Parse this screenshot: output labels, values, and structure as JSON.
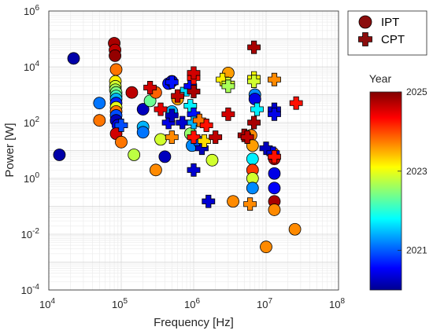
{
  "chart_data": {
    "type": "scatter",
    "xlabel": "Frequency [Hz]",
    "ylabel": "Power [W]",
    "xscale": "log",
    "yscale": "log",
    "xlim": [
      10000,
      100000000
    ],
    "ylim": [
      0.0001,
      1000000
    ],
    "grid": true,
    "x_ticks": [
      {
        "base": "10",
        "exp": "4"
      },
      {
        "base": "10",
        "exp": "5"
      },
      {
        "base": "10",
        "exp": "6"
      },
      {
        "base": "10",
        "exp": "7"
      },
      {
        "base": "10",
        "exp": "8"
      }
    ],
    "y_ticks": [
      {
        "base": "10",
        "exp": "-4"
      },
      {
        "base": "10",
        "exp": "-2"
      },
      {
        "base": "10",
        "exp": "0"
      },
      {
        "base": "10",
        "exp": "2"
      },
      {
        "base": "10",
        "exp": "4"
      },
      {
        "base": "10",
        "exp": "6"
      }
    ],
    "legend": {
      "placement": "outside-top-right",
      "entries": [
        {
          "label": "IPT",
          "marker": "circle",
          "color": "#8b0d0d"
        },
        {
          "label": "CPT",
          "marker": "plus",
          "color": "#8b0d0d"
        }
      ]
    },
    "colorbar": {
      "title": "Year",
      "min": 2020,
      "max": 2025,
      "ticks": [
        "2021",
        "2023",
        "2025"
      ],
      "colormap": "jet"
    },
    "series": [
      {
        "name": "IPT",
        "marker": "circle",
        "points": [
          [
            14000,
            7,
            2020.2
          ],
          [
            22000,
            20000,
            2020.2
          ],
          [
            50000,
            500,
            2021.2
          ],
          [
            50000,
            120,
            2023.8
          ],
          [
            80000,
            70000,
            2024.8
          ],
          [
            82000,
            40000,
            2024.7
          ],
          [
            82000,
            25000,
            2024.9
          ],
          [
            85000,
            8000,
            2023.8
          ],
          [
            83000,
            3000,
            2023.2
          ],
          [
            83000,
            2000,
            2022.9
          ],
          [
            83000,
            1500,
            2022.7
          ],
          [
            85000,
            1200,
            2022.5
          ],
          [
            85000,
            900,
            2022.2
          ],
          [
            85000,
            700,
            2021.5
          ],
          [
            85000,
            500,
            2020.8
          ],
          [
            85000,
            350,
            2023.0
          ],
          [
            85000,
            250,
            2023.8
          ],
          [
            85000,
            180,
            2021.0
          ],
          [
            85000,
            120,
            2020.3
          ],
          [
            90000,
            80,
            2020.5
          ],
          [
            85000,
            40,
            2024.6
          ],
          [
            100000,
            20,
            2023.8
          ],
          [
            140000,
            1200,
            2024.7
          ],
          [
            150000,
            7,
            2022.8
          ],
          [
            200000,
            300,
            2020.3
          ],
          [
            200000,
            70,
            2021.5
          ],
          [
            200000,
            45,
            2021.2
          ],
          [
            250000,
            600,
            2022.4
          ],
          [
            300000,
            1200,
            2023.9
          ],
          [
            300000,
            2,
            2023.7
          ],
          [
            350000,
            25,
            2022.9
          ],
          [
            400000,
            6,
            2020.3
          ],
          [
            450000,
            2500,
            2020.7
          ],
          [
            500000,
            3000,
            2020.3
          ],
          [
            500000,
            250,
            2021.5
          ],
          [
            600000,
            700,
            2023.6
          ],
          [
            900000,
            40,
            2022.6
          ],
          [
            950000,
            15,
            2021.3
          ],
          [
            1200000,
            20,
            2021.0
          ],
          [
            1800000,
            4.5,
            2022.9
          ],
          [
            3000000,
            6000,
            2023.6
          ],
          [
            3500000,
            0.15,
            2023.7
          ],
          [
            6200000,
            35,
            2023.7
          ],
          [
            6500000,
            15,
            2023.6
          ],
          [
            6500000,
            5,
            2021.8
          ],
          [
            6500000,
            2,
            2024.1
          ],
          [
            6500000,
            1,
            2022.9
          ],
          [
            6500000,
            0.45,
            2021.3
          ],
          [
            7000000,
            1000,
            2021.3
          ],
          [
            7000000,
            700,
            2020.5
          ],
          [
            10000000,
            0.0035,
            2023.7
          ],
          [
            12500000,
            8,
            2023.8
          ],
          [
            13000000,
            5,
            2024.7
          ],
          [
            13000000,
            1.5,
            2020.5
          ],
          [
            13000000,
            0.45,
            2020.6
          ],
          [
            13000000,
            0.15,
            2024.8
          ],
          [
            13000000,
            0.075,
            2023.7
          ],
          [
            25000000,
            0.015,
            2023.7
          ]
        ]
      },
      {
        "name": "CPT",
        "marker": "plus",
        "points": [
          [
            100000,
            80,
            2021.0
          ],
          [
            250000,
            1800,
            2024.6
          ],
          [
            350000,
            300,
            2024.5
          ],
          [
            450000,
            100,
            2020.5
          ],
          [
            500000,
            180,
            2020.3
          ],
          [
            500000,
            30,
            2023.7
          ],
          [
            500000,
            2800,
            2020.7
          ],
          [
            600000,
            900,
            2024.7
          ],
          [
            700000,
            100,
            2020.4
          ],
          [
            800000,
            1500,
            2021.7
          ],
          [
            900000,
            2000,
            2020.6
          ],
          [
            900000,
            400,
            2021.8
          ],
          [
            1000000,
            4000,
            2024.3
          ],
          [
            1000000,
            6000,
            2024.6
          ],
          [
            1000000,
            1300,
            2024.8
          ],
          [
            1000000,
            200,
            2020.7
          ],
          [
            1000000,
            100,
            2021.5
          ],
          [
            1000000,
            30,
            2024.3
          ],
          [
            1000000,
            2,
            2020.4
          ],
          [
            1200000,
            120,
            2023.8
          ],
          [
            1300000,
            12,
            2020.3
          ],
          [
            1400000,
            22,
            2023.3
          ],
          [
            1500000,
            80,
            2024.3
          ],
          [
            1600000,
            0.15,
            2020.4
          ],
          [
            2000000,
            30,
            2024.7
          ],
          [
            2500000,
            3500,
            2023.2
          ],
          [
            3000000,
            2500,
            2022.9
          ],
          [
            3000000,
            2000,
            2022.7
          ],
          [
            3000000,
            200,
            2024.6
          ],
          [
            5000000,
            35,
            2024.8
          ],
          [
            5500000,
            30,
            2024.7
          ],
          [
            6000000,
            0.12,
            2023.7
          ],
          [
            6800000,
            50000,
            2024.8
          ],
          [
            6800000,
            4000,
            2023.1
          ],
          [
            6800000,
            3000,
            2022.9
          ],
          [
            6800000,
            100,
            2024.8
          ],
          [
            7500000,
            300,
            2021.8
          ],
          [
            10000000,
            12,
            2020.3
          ],
          [
            12500000,
            8,
            2020.5
          ],
          [
            13000000,
            6,
            2024.3
          ],
          [
            13000000,
            3500,
            2023.7
          ],
          [
            13000000,
            300,
            2020.4
          ],
          [
            13000000,
            200,
            2020.5
          ],
          [
            26000000,
            500,
            2024.3
          ]
        ]
      }
    ]
  }
}
